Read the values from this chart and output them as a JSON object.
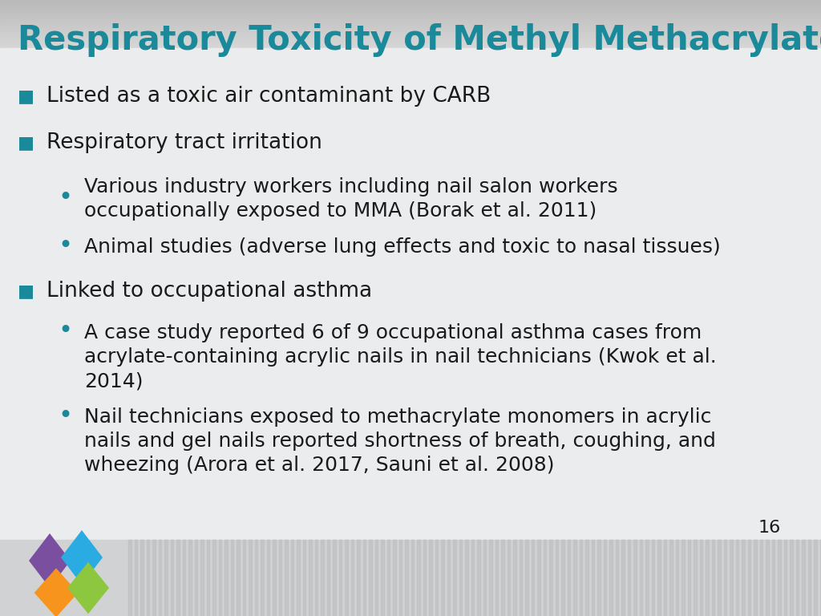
{
  "title": "Respiratory Toxicity of Methyl Methacrylate (MMA)",
  "title_color": "#1a8a9a",
  "title_fontsize": 30,
  "bullet_color": "#1a8a9a",
  "text_color": "#1a1a1a",
  "page_number": "16",
  "bullet1": "Listed as a toxic air contaminant by CARB",
  "bullet2": "Respiratory tract irritation",
  "sub2a_line1": "Various industry workers including nail salon workers",
  "sub2a_line2": "occupationally exposed to MMA (Borak et al. 2011)",
  "sub2b": "Animal studies (adverse lung effects and toxic to nasal tissues)",
  "bullet3": "Linked to occupational asthma",
  "sub3a_line1": "A case study reported 6 of 9 occupational asthma cases from",
  "sub3a_line2": "acrylate-containing acrylic nails in nail technicians (Kwok et al.",
  "sub3a_line3": "2014)",
  "sub3b_line1": "Nail technicians exposed to methacrylate monomers in acrylic",
  "sub3b_line2": "nails and gel nails reported shortness of breath, coughing, and",
  "sub3b_line3": "wheezing (Arora et al. 2017, Sauni et al. 2008)",
  "main_bullet_fontsize": 19,
  "sub_bullet_fontsize": 18,
  "bg_top": "#c8c8c8",
  "bg_mid": "#e0e2e4",
  "bg_bottom": "#d0d0d0",
  "stripe_color1": "#c8c8c8",
  "stripe_color2": "#d4d4d4",
  "logo_purple": "#7b4fa0",
  "logo_blue": "#2aace2",
  "logo_orange": "#f7941d",
  "logo_green": "#8dc63f"
}
